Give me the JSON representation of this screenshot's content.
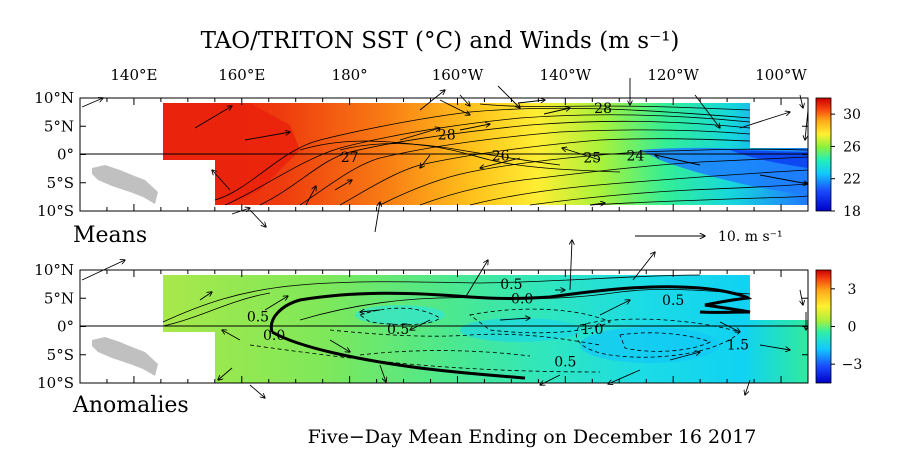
{
  "title": "TAO/TRITON SST (°C) and Winds (m s⁻¹)",
  "footer": "Five−Day Mean Ending on December 16 2017",
  "chart_data": [
    {
      "type": "heatmap",
      "panel": "Means",
      "variable": "SST",
      "unit": "°C",
      "x_ticks": [
        "140°E",
        "160°E",
        "180°",
        "160°W",
        "140°W",
        "120°W",
        "100°W"
      ],
      "x_tick_values": [
        140,
        160,
        180,
        200,
        220,
        240,
        260
      ],
      "y_ticks": [
        "10°N",
        "5°N",
        "0°",
        "5°S",
        "10°S"
      ],
      "y_tick_values": [
        10,
        5,
        0,
        -5,
        -10
      ],
      "xlim": [
        130,
        265
      ],
      "ylim": [
        -10,
        10
      ],
      "colorbar_ticks": [
        "30",
        "26",
        "22",
        "18"
      ],
      "colorbar_values": [
        30,
        26,
        22,
        18
      ],
      "colorbar_range": [
        18,
        32
      ],
      "contour_labels": [
        {
          "text": "28",
          "lon": 198,
          "lat": 3.5
        },
        {
          "text": "27",
          "lon": 180,
          "lat": -0.4
        },
        {
          "text": "26",
          "lon": 208,
          "lat": -0.2
        },
        {
          "text": "28",
          "lon": 227,
          "lat": 8.2
        },
        {
          "text": "25",
          "lon": 225,
          "lat": -0.5
        },
        {
          "text": "24",
          "lon": 233,
          "lat": -0.2
        }
      ],
      "wind_reference": {
        "label": "10.  m s⁻¹",
        "speed": 10
      }
    },
    {
      "type": "heatmap",
      "panel": "Anomalies",
      "variable": "SST anomaly",
      "unit": "°C",
      "x_ticks": [
        "140°E",
        "160°E",
        "180°",
        "160°W",
        "140°W",
        "120°W",
        "100°W"
      ],
      "y_ticks": [
        "10°N",
        "5°N",
        "0°",
        "5°S",
        "10°S"
      ],
      "colorbar_ticks": [
        "3",
        "0",
        "−3"
      ],
      "colorbar_values": [
        3,
        0,
        -3
      ],
      "colorbar_range": [
        -4.5,
        4.5
      ],
      "contour_labels": [
        {
          "text": "0.5",
          "lon": 210,
          "lat": 7.5
        },
        {
          "text": "0.0",
          "lon": 212,
          "lat": 5
        },
        {
          "text": "0.5",
          "lon": 240,
          "lat": 4.7
        },
        {
          "text": "0.5",
          "lon": 163,
          "lat": 1.8
        },
        {
          "text": "0.0",
          "lon": 166,
          "lat": -1.5
        },
        {
          "text": "0.5",
          "lon": 189,
          "lat": -0.4
        },
        {
          "text": "1.0",
          "lon": 225,
          "lat": -0.4
        },
        {
          "text": "1.5",
          "lon": 252,
          "lat": -3.2
        },
        {
          "text": "0.5",
          "lon": 220,
          "lat": -6.2
        }
      ]
    }
  ]
}
